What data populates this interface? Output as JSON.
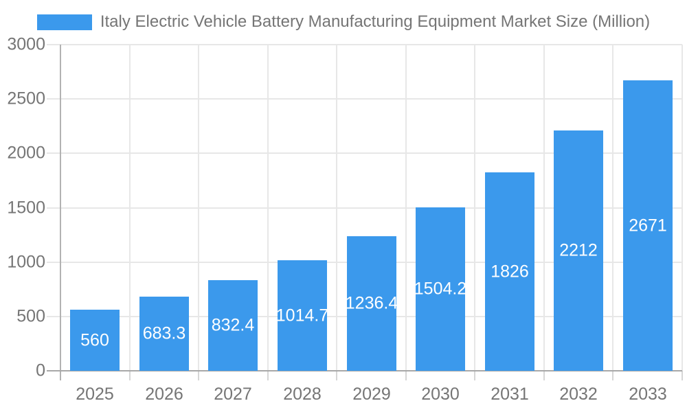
{
  "legend": {
    "label": "Italy Electric Vehicle Battery Manufacturing Equipment Market Size (Million)"
  },
  "colors": {
    "bar": "#3b99ec",
    "bar_value_text": "#ffffff",
    "axis_text": "#757575",
    "gridline": "#e7e7e7",
    "axis_line": "#aaaaaa"
  },
  "chart_data": {
    "type": "bar",
    "title": "Italy Electric Vehicle Battery Manufacturing Equipment Market Size (Million)",
    "categories": [
      "2025",
      "2026",
      "2027",
      "2028",
      "2029",
      "2030",
      "2031",
      "2032",
      "2033"
    ],
    "values": [
      560,
      683.3,
      832.4,
      1014.7,
      1236.4,
      1504.2,
      1826,
      2212,
      2671
    ],
    "value_labels": [
      "560",
      "683.3",
      "832.4",
      "1014.7",
      "1236.4",
      "1504.2",
      "1826",
      "2212",
      "2671"
    ],
    "series_name": "Italy Electric Vehicle Battery Manufacturing Equipment Market Size (Million)",
    "xlabel": "",
    "ylabel": "",
    "ylim": [
      0,
      3000
    ],
    "yticks": [
      0,
      500,
      1000,
      1500,
      2000,
      2500,
      3000
    ],
    "grid": true,
    "legend_position": "top",
    "value_label_position": "center-of-bar"
  }
}
